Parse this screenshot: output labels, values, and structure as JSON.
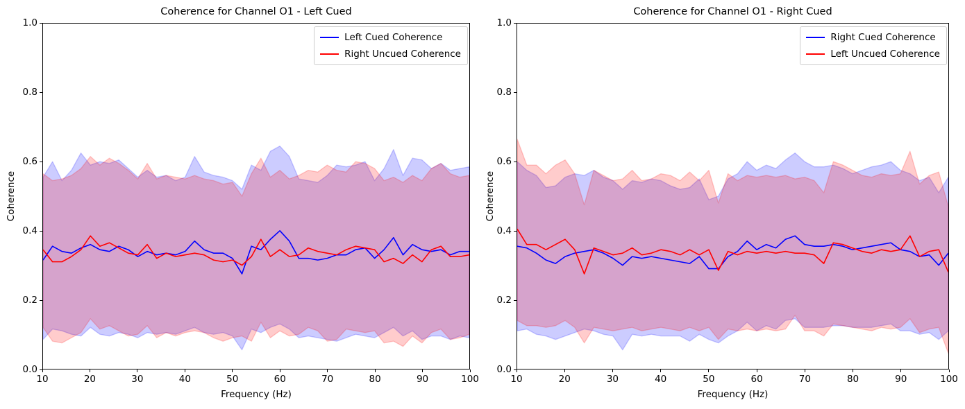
{
  "colors": {
    "cued_line": "#0000ff",
    "uncued_line": "#ff0000",
    "band_alpha": 0.2,
    "axis": "#000000",
    "legend_border": "#cccccc",
    "background": "#ffffff"
  },
  "chart_data": [
    {
      "type": "line",
      "title": "Coherence for Channel O1 - Left Cued",
      "xlabel": "Frequency (Hz)",
      "ylabel": "Coherence",
      "xlim": [
        10,
        100
      ],
      "ylim": [
        0.0,
        1.0
      ],
      "xticks": [
        10,
        20,
        30,
        40,
        50,
        60,
        70,
        80,
        90,
        100
      ],
      "ytick_labels": [
        "0.0",
        "0.2",
        "0.4",
        "0.6",
        "0.8",
        "1.0"
      ],
      "grid": false,
      "legend_position": "upper right",
      "x": [
        10,
        12,
        14,
        16,
        18,
        20,
        22,
        24,
        26,
        28,
        30,
        32,
        34,
        36,
        38,
        40,
        42,
        44,
        46,
        48,
        50,
        52,
        54,
        56,
        58,
        60,
        62,
        64,
        66,
        68,
        70,
        72,
        74,
        76,
        78,
        80,
        82,
        84,
        86,
        88,
        90,
        92,
        94,
        96,
        98,
        100
      ],
      "series": [
        {
          "name": "Left Cued Coherence",
          "color": "#0000ff",
          "values": [
            0.315,
            0.355,
            0.34,
            0.335,
            0.35,
            0.36,
            0.345,
            0.34,
            0.355,
            0.345,
            0.325,
            0.34,
            0.33,
            0.335,
            0.33,
            0.34,
            0.37,
            0.345,
            0.335,
            0.335,
            0.32,
            0.275,
            0.355,
            0.345,
            0.375,
            0.4,
            0.37,
            0.32,
            0.32,
            0.315,
            0.32,
            0.33,
            0.33,
            0.345,
            0.35,
            0.32,
            0.345,
            0.38,
            0.33,
            0.36,
            0.345,
            0.34,
            0.345,
            0.33,
            0.34,
            0.34
          ],
          "band_upper": [
            0.555,
            0.6,
            0.545,
            0.575,
            0.625,
            0.59,
            0.6,
            0.595,
            0.605,
            0.58,
            0.555,
            0.575,
            0.555,
            0.56,
            0.545,
            0.555,
            0.615,
            0.57,
            0.56,
            0.555,
            0.545,
            0.52,
            0.59,
            0.575,
            0.63,
            0.645,
            0.615,
            0.55,
            0.545,
            0.54,
            0.56,
            0.59,
            0.585,
            0.59,
            0.6,
            0.545,
            0.58,
            0.635,
            0.56,
            0.61,
            0.605,
            0.58,
            0.595,
            0.575,
            0.58,
            0.585
          ],
          "band_lower": [
            0.085,
            0.115,
            0.11,
            0.1,
            0.095,
            0.12,
            0.1,
            0.095,
            0.105,
            0.1,
            0.09,
            0.105,
            0.1,
            0.105,
            0.1,
            0.11,
            0.12,
            0.105,
            0.1,
            0.105,
            0.095,
            0.055,
            0.115,
            0.105,
            0.12,
            0.13,
            0.115,
            0.09,
            0.095,
            0.09,
            0.085,
            0.08,
            0.09,
            0.1,
            0.095,
            0.09,
            0.105,
            0.12,
            0.095,
            0.11,
            0.085,
            0.095,
            0.095,
            0.085,
            0.095,
            0.09
          ]
        },
        {
          "name": "Right Uncued Coherence",
          "color": "#ff0000",
          "values": [
            0.345,
            0.31,
            0.31,
            0.325,
            0.345,
            0.385,
            0.355,
            0.365,
            0.35,
            0.335,
            0.33,
            0.36,
            0.32,
            0.335,
            0.325,
            0.33,
            0.335,
            0.33,
            0.315,
            0.31,
            0.315,
            0.3,
            0.325,
            0.375,
            0.325,
            0.345,
            0.325,
            0.33,
            0.35,
            0.34,
            0.335,
            0.33,
            0.345,
            0.355,
            0.35,
            0.345,
            0.31,
            0.32,
            0.305,
            0.33,
            0.31,
            0.345,
            0.355,
            0.325,
            0.325,
            0.33
          ],
          "band_upper": [
            0.565,
            0.545,
            0.55,
            0.56,
            0.58,
            0.615,
            0.59,
            0.61,
            0.595,
            0.575,
            0.55,
            0.595,
            0.55,
            0.56,
            0.555,
            0.55,
            0.56,
            0.55,
            0.545,
            0.535,
            0.54,
            0.5,
            0.565,
            0.61,
            0.555,
            0.575,
            0.55,
            0.56,
            0.575,
            0.57,
            0.59,
            0.575,
            0.57,
            0.6,
            0.595,
            0.58,
            0.545,
            0.555,
            0.54,
            0.56,
            0.545,
            0.58,
            0.595,
            0.565,
            0.555,
            0.56
          ],
          "band_lower": [
            0.12,
            0.08,
            0.075,
            0.09,
            0.105,
            0.145,
            0.115,
            0.125,
            0.11,
            0.095,
            0.1,
            0.125,
            0.09,
            0.105,
            0.095,
            0.105,
            0.11,
            0.105,
            0.09,
            0.08,
            0.09,
            0.095,
            0.08,
            0.135,
            0.09,
            0.11,
            0.095,
            0.1,
            0.12,
            0.11,
            0.08,
            0.085,
            0.115,
            0.11,
            0.105,
            0.11,
            0.075,
            0.08,
            0.065,
            0.095,
            0.075,
            0.105,
            0.115,
            0.085,
            0.09,
            0.1
          ]
        }
      ]
    },
    {
      "type": "line",
      "title": "Coherence for Channel O1 - Right Cued",
      "xlabel": "Frequency (Hz)",
      "ylabel": "Coherence",
      "xlim": [
        10,
        100
      ],
      "ylim": [
        0.0,
        1.0
      ],
      "xticks": [
        10,
        20,
        30,
        40,
        50,
        60,
        70,
        80,
        90,
        100
      ],
      "ytick_labels": [
        "0.0",
        "0.2",
        "0.4",
        "0.6",
        "0.8",
        "1.0"
      ],
      "grid": false,
      "legend_position": "upper right",
      "x": [
        10,
        12,
        14,
        16,
        18,
        20,
        22,
        24,
        26,
        28,
        30,
        32,
        34,
        36,
        38,
        40,
        42,
        44,
        46,
        48,
        50,
        52,
        54,
        56,
        58,
        60,
        62,
        64,
        66,
        68,
        70,
        72,
        74,
        76,
        78,
        80,
        82,
        84,
        86,
        88,
        90,
        92,
        94,
        96,
        98,
        100
      ],
      "series": [
        {
          "name": "Right Cued Coherence",
          "color": "#0000ff",
          "values": [
            0.355,
            0.35,
            0.335,
            0.315,
            0.305,
            0.325,
            0.335,
            0.34,
            0.345,
            0.335,
            0.32,
            0.3,
            0.325,
            0.32,
            0.325,
            0.32,
            0.315,
            0.31,
            0.305,
            0.325,
            0.29,
            0.29,
            0.325,
            0.34,
            0.37,
            0.345,
            0.36,
            0.35,
            0.375,
            0.385,
            0.36,
            0.355,
            0.355,
            0.36,
            0.355,
            0.345,
            0.35,
            0.355,
            0.36,
            0.365,
            0.345,
            0.34,
            0.325,
            0.33,
            0.3,
            0.335
          ],
          "band_upper": [
            0.6,
            0.575,
            0.56,
            0.525,
            0.53,
            0.555,
            0.565,
            0.56,
            0.575,
            0.555,
            0.545,
            0.52,
            0.545,
            0.54,
            0.55,
            0.545,
            0.53,
            0.52,
            0.525,
            0.55,
            0.49,
            0.5,
            0.55,
            0.565,
            0.6,
            0.575,
            0.59,
            0.58,
            0.605,
            0.625,
            0.6,
            0.585,
            0.585,
            0.59,
            0.58,
            0.565,
            0.575,
            0.585,
            0.59,
            0.6,
            0.575,
            0.565,
            0.545,
            0.555,
            0.51,
            0.555
          ],
          "band_lower": [
            0.11,
            0.115,
            0.1,
            0.095,
            0.085,
            0.095,
            0.105,
            0.115,
            0.11,
            0.1,
            0.095,
            0.055,
            0.1,
            0.095,
            0.1,
            0.095,
            0.095,
            0.095,
            0.08,
            0.1,
            0.085,
            0.075,
            0.095,
            0.11,
            0.135,
            0.11,
            0.125,
            0.115,
            0.14,
            0.145,
            0.12,
            0.12,
            0.12,
            0.125,
            0.125,
            0.12,
            0.12,
            0.12,
            0.125,
            0.13,
            0.11,
            0.11,
            0.1,
            0.105,
            0.085,
            0.11
          ]
        },
        {
          "name": "Left Uncued Coherence",
          "color": "#ff0000",
          "values": [
            0.405,
            0.36,
            0.36,
            0.345,
            0.36,
            0.375,
            0.345,
            0.275,
            0.35,
            0.34,
            0.33,
            0.335,
            0.35,
            0.33,
            0.335,
            0.345,
            0.34,
            0.33,
            0.345,
            0.33,
            0.345,
            0.285,
            0.34,
            0.33,
            0.34,
            0.335,
            0.34,
            0.335,
            0.34,
            0.335,
            0.335,
            0.33,
            0.305,
            0.365,
            0.36,
            0.35,
            0.34,
            0.335,
            0.345,
            0.34,
            0.345,
            0.385,
            0.325,
            0.34,
            0.345,
            0.28
          ],
          "band_upper": [
            0.665,
            0.59,
            0.59,
            0.565,
            0.59,
            0.605,
            0.565,
            0.475,
            0.575,
            0.56,
            0.545,
            0.55,
            0.575,
            0.545,
            0.55,
            0.565,
            0.56,
            0.545,
            0.57,
            0.545,
            0.575,
            0.48,
            0.565,
            0.545,
            0.56,
            0.555,
            0.56,
            0.555,
            0.56,
            0.55,
            0.555,
            0.545,
            0.51,
            0.6,
            0.59,
            0.575,
            0.56,
            0.555,
            0.565,
            0.56,
            0.565,
            0.63,
            0.535,
            0.56,
            0.57,
            0.47
          ],
          "band_lower": [
            0.14,
            0.125,
            0.125,
            0.12,
            0.125,
            0.14,
            0.12,
            0.075,
            0.12,
            0.115,
            0.11,
            0.115,
            0.12,
            0.11,
            0.115,
            0.12,
            0.115,
            0.11,
            0.12,
            0.11,
            0.12,
            0.085,
            0.115,
            0.11,
            0.115,
            0.11,
            0.115,
            0.11,
            0.115,
            0.155,
            0.11,
            0.11,
            0.095,
            0.13,
            0.125,
            0.12,
            0.115,
            0.11,
            0.12,
            0.115,
            0.12,
            0.145,
            0.105,
            0.115,
            0.12,
            0.045
          ]
        }
      ]
    }
  ]
}
